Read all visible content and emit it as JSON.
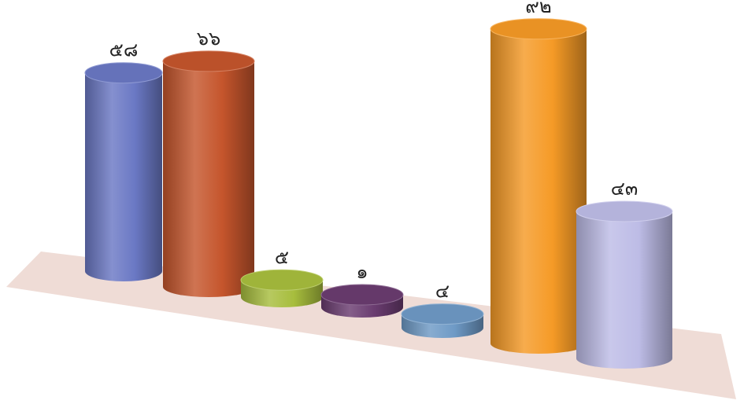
{
  "chart_data": {
    "type": "bar",
    "style": "3d-cylinder",
    "values": [
      58,
      66,
      5,
      1,
      4,
      92,
      43
    ],
    "data_labels": [
      "๕๘",
      "๖๖",
      "๕",
      "๑",
      "๔",
      "๙๒",
      "๔๓"
    ],
    "colors": [
      "#6a78c4",
      "#c5552c",
      "#a7bd3d",
      "#6a3c70",
      "#6e9ac6",
      "#f59a26",
      "#bdbce6"
    ],
    "floor_color": "#efdcd6",
    "grid": false,
    "legend": "none"
  }
}
